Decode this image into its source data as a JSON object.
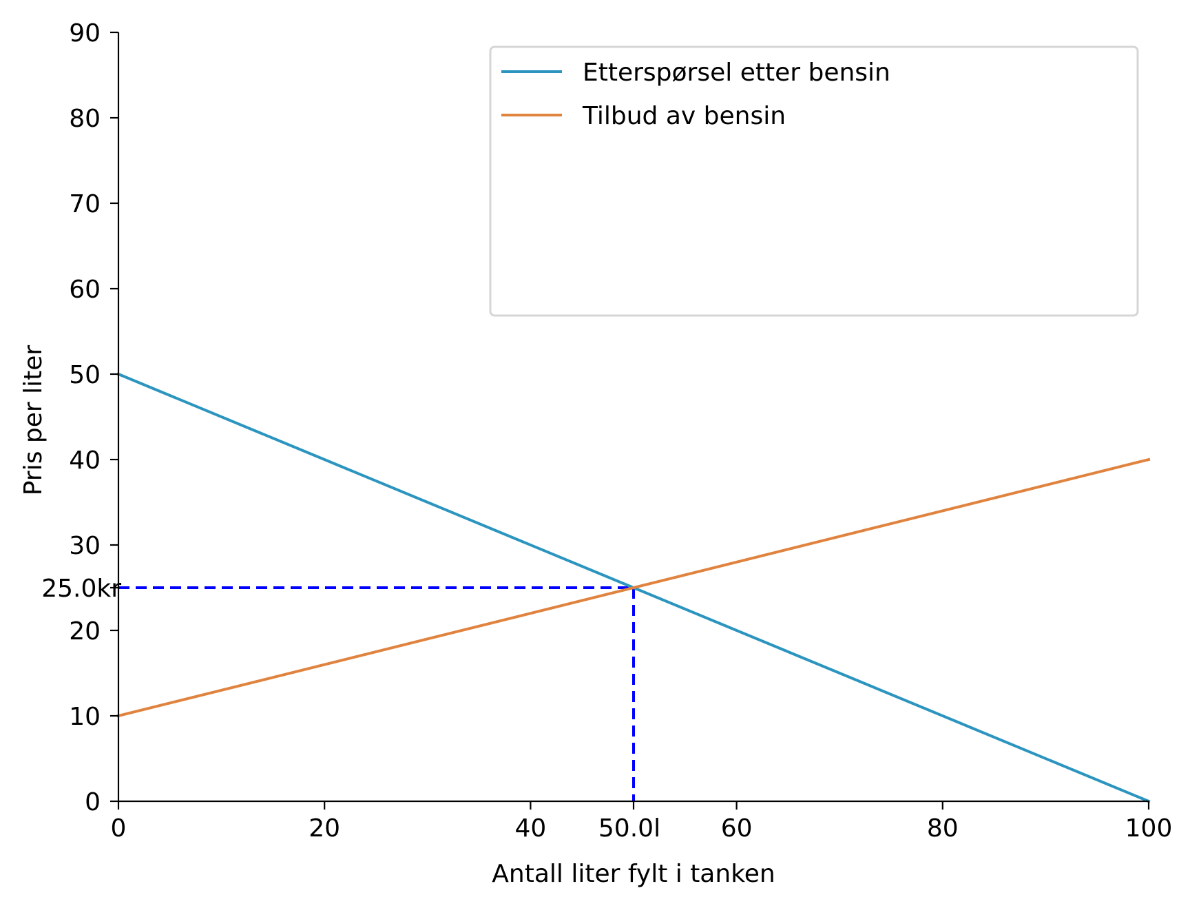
{
  "chart_data": {
    "type": "line",
    "xlabel": "Antall liter fylt i tanken",
    "ylabel": "Pris per liter",
    "xlim": [
      0,
      100
    ],
    "ylim": [
      0,
      90
    ],
    "xticks": [
      0,
      20,
      40,
      60,
      80,
      100
    ],
    "yticks": [
      0,
      10,
      20,
      30,
      40,
      50,
      60,
      70,
      80,
      90
    ],
    "series": [
      {
        "name": "Etterspørsel etter bensin",
        "color": "#2b95bf",
        "x": [
          0,
          100
        ],
        "y": [
          50,
          0
        ]
      },
      {
        "name": "Tilbud av bensin",
        "color": "#e0833f",
        "x": [
          0,
          100
        ],
        "y": [
          10,
          40
        ]
      }
    ],
    "equilibrium": {
      "x": 50.0,
      "y": 25.0,
      "x_label": "50.0l",
      "y_label": "25.0kr",
      "color": "#0000ff",
      "line_style": "dashed"
    },
    "legend": {
      "placement": "top-right"
    },
    "grid": false,
    "spines": [
      "left",
      "bottom"
    ]
  }
}
